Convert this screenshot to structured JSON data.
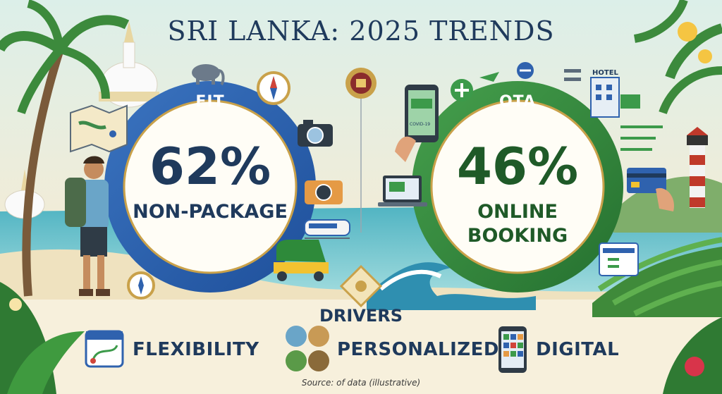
{
  "title": "SRI LANKA: 2025 TRENDS",
  "left": {
    "label": "FIT",
    "value": "62%",
    "caption": "NON-PACKAGE"
  },
  "right": {
    "label": "OTA",
    "value": "46%",
    "caption_line1": "ONLINE",
    "caption_line2": "BOOKING"
  },
  "drivers_title": "DRIVERS",
  "drivers": {
    "flexibility": "FLEXIBILITY",
    "personalized": "PERSONALIZED",
    "digital": "DIGITAL"
  },
  "icons": {
    "hotel_sign": "HOTEL",
    "phone_screen": "COVID-19"
  },
  "source": "Source: of data (illustrative)",
  "colors": {
    "navy": "#1f3a5c",
    "blue_ring": "#2f62ae",
    "green_ring": "#2e7d3a",
    "gold": "#c9a14a"
  }
}
